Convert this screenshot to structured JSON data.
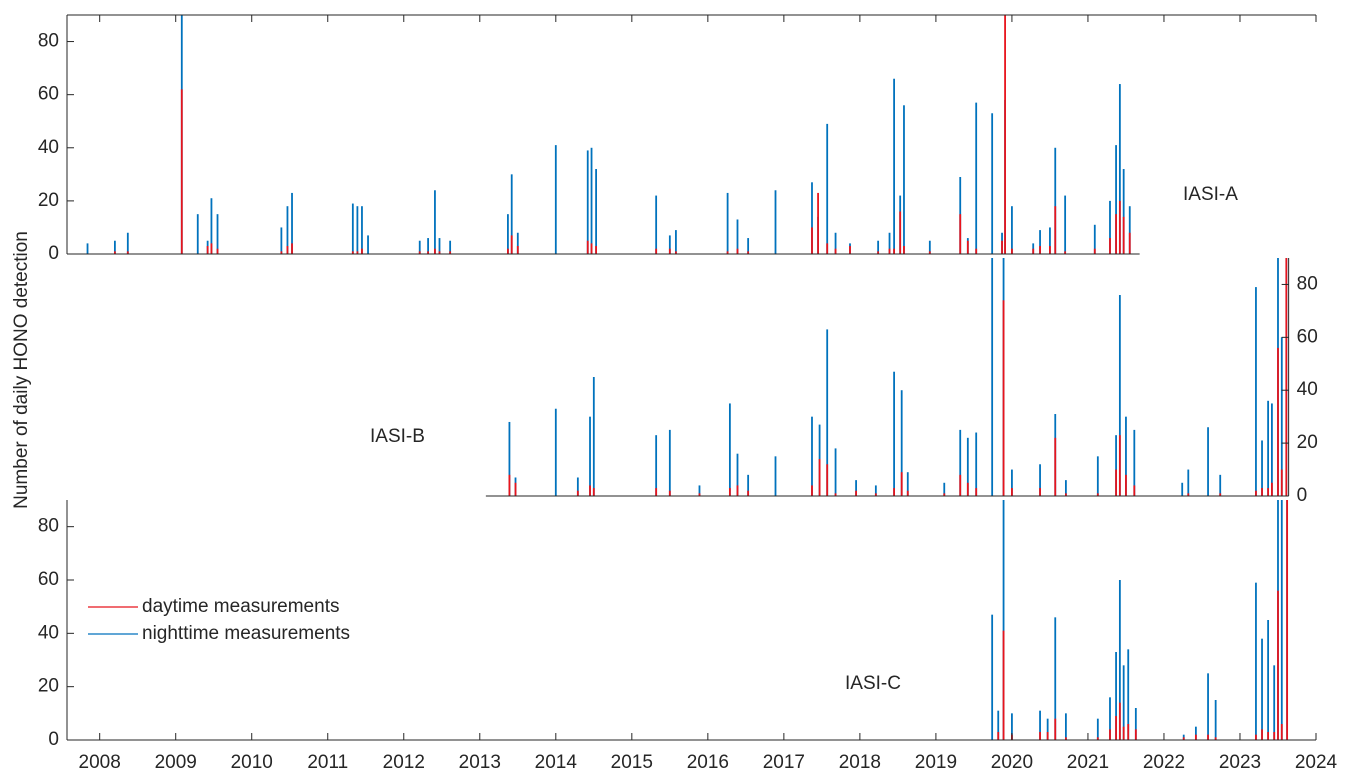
{
  "chart_data": [
    {
      "type": "bar",
      "label": "IASI-A",
      "ylabel": "Number of daily HONO detection",
      "xlim": [
        2007.57,
        2021.68
      ],
      "ylim": [
        0,
        90
      ],
      "yticks": [
        0,
        20,
        40,
        60,
        80
      ],
      "x": [
        2007.84,
        2008.2,
        2008.37,
        2009.08,
        2009.29,
        2009.42,
        2009.47,
        2009.55,
        2010.39,
        2010.47,
        2010.53,
        2011.33,
        2011.39,
        2011.45,
        2011.53,
        2012.21,
        2012.32,
        2012.41,
        2012.47,
        2012.61,
        2013.37,
        2013.42,
        2013.5,
        2014.0,
        2014.42,
        2014.47,
        2014.53,
        2015.32,
        2015.5,
        2015.58,
        2016.26,
        2016.39,
        2016.53,
        2016.89,
        2017.37,
        2017.45,
        2017.57,
        2017.68,
        2017.87,
        2018.24,
        2018.39,
        2018.45,
        2018.53,
        2018.58,
        2018.92,
        2019.32,
        2019.42,
        2019.53,
        2019.74,
        2019.87,
        2019.91,
        2020.0,
        2020.28,
        2020.37,
        2020.5,
        2020.57,
        2020.7,
        2021.09,
        2021.29,
        2021.37,
        2021.42,
        2021.47,
        2021.55
      ],
      "series": [
        {
          "color": "#0072bd",
          "values": [
            4,
            5,
            8,
            90,
            15,
            5,
            21,
            15,
            10,
            18,
            23,
            19,
            18,
            18,
            7,
            5,
            6,
            24,
            6,
            5,
            15,
            30,
            8,
            41,
            39,
            40,
            32,
            22,
            7,
            9,
            23,
            13,
            6,
            24,
            27,
            14,
            49,
            8,
            4,
            5,
            8,
            66,
            22,
            56,
            5,
            29,
            6,
            57,
            53,
            8,
            58,
            18,
            4,
            9,
            10,
            40,
            22,
            11,
            20,
            41,
            64,
            32,
            18
          ]
        },
        {
          "color": "#e8141c",
          "values": [
            0,
            1,
            1,
            62,
            0,
            3,
            4,
            2,
            1,
            3,
            4,
            1,
            1,
            2,
            0,
            1,
            1,
            2,
            1,
            1,
            2,
            7,
            3,
            0,
            5,
            4,
            3,
            2,
            2,
            1,
            1,
            2,
            1,
            0,
            10,
            23,
            4,
            2,
            3,
            1,
            2,
            2,
            16,
            3,
            1,
            15,
            5,
            2,
            0,
            5,
            90,
            2,
            2,
            3,
            3,
            18,
            1,
            2,
            6,
            15,
            20,
            14,
            8
          ]
        }
      ]
    },
    {
      "type": "bar",
      "label": "IASI-B",
      "xlim": [
        2013.08,
        2023.64
      ],
      "ylim": [
        0,
        90
      ],
      "yticks": [
        0,
        20,
        40,
        60,
        80
      ],
      "x": [
        2013.39,
        2013.47,
        2014.0,
        2014.29,
        2014.45,
        2014.5,
        2015.32,
        2015.5,
        2015.89,
        2016.29,
        2016.39,
        2016.53,
        2016.89,
        2017.37,
        2017.47,
        2017.57,
        2017.68,
        2017.95,
        2018.21,
        2018.45,
        2018.55,
        2018.63,
        2019.11,
        2019.32,
        2019.42,
        2019.53,
        2019.74,
        2019.89,
        2020.0,
        2020.37,
        2020.57,
        2020.71,
        2021.13,
        2021.37,
        2021.42,
        2021.5,
        2021.61,
        2022.24,
        2022.32,
        2022.58,
        2022.74,
        2023.21,
        2023.29,
        2023.37,
        2023.42,
        2023.5,
        2023.55,
        2023.61
      ],
      "series": [
        {
          "color": "#0072bd",
          "values": [
            28,
            7,
            33,
            7,
            30,
            45,
            23,
            25,
            4,
            35,
            16,
            8,
            15,
            30,
            27,
            63,
            18,
            6,
            4,
            47,
            40,
            9,
            5,
            25,
            22,
            24,
            90,
            90,
            10,
            12,
            31,
            6,
            15,
            23,
            76,
            30,
            25,
            5,
            10,
            26,
            8,
            79,
            21,
            36,
            35,
            90,
            60,
            90
          ]
        },
        {
          "color": "#e8141c",
          "values": [
            8,
            5,
            0,
            2,
            4,
            3,
            3,
            2,
            1,
            3,
            4,
            2,
            0,
            4,
            14,
            12,
            1,
            2,
            1,
            3,
            9,
            2,
            1,
            8,
            5,
            3,
            0,
            74,
            3,
            3,
            22,
            1,
            1,
            10,
            23,
            8,
            4,
            0,
            1,
            0,
            1,
            2,
            3,
            3,
            5,
            56,
            10,
            90
          ]
        }
      ]
    },
    {
      "type": "bar",
      "label": "IASI-C",
      "xlim": [
        2007.57,
        2024
      ],
      "xticks": [
        2008,
        2009,
        2010,
        2011,
        2012,
        2013,
        2014,
        2015,
        2016,
        2017,
        2018,
        2019,
        2020,
        2021,
        2022,
        2023,
        2024
      ],
      "ylim": [
        0,
        90
      ],
      "yticks": [
        0,
        20,
        40,
        60,
        80
      ],
      "x": [
        2019.74,
        2019.82,
        2019.89,
        2020.0,
        2020.37,
        2020.47,
        2020.57,
        2020.71,
        2021.13,
        2021.29,
        2021.37,
        2021.42,
        2021.47,
        2021.53,
        2021.63,
        2022.26,
        2022.42,
        2022.58,
        2022.68,
        2023.21,
        2023.29,
        2023.37,
        2023.45,
        2023.5,
        2023.55,
        2023.62
      ],
      "series": [
        {
          "name": "nighttime measurements",
          "color": "#0072bd",
          "values": [
            47,
            11,
            90,
            10,
            11,
            8,
            46,
            10,
            8,
            16,
            33,
            60,
            28,
            34,
            12,
            2,
            5,
            25,
            15,
            59,
            38,
            45,
            28,
            90,
            90,
            90
          ]
        },
        {
          "name": "daytime measurements",
          "color": "#e8141c",
          "values": [
            0,
            3,
            41,
            2,
            3,
            3,
            8,
            1,
            1,
            4,
            9,
            14,
            5,
            6,
            4,
            1,
            2,
            2,
            1,
            2,
            4,
            3,
            3,
            56,
            6,
            90
          ]
        }
      ]
    }
  ]
}
